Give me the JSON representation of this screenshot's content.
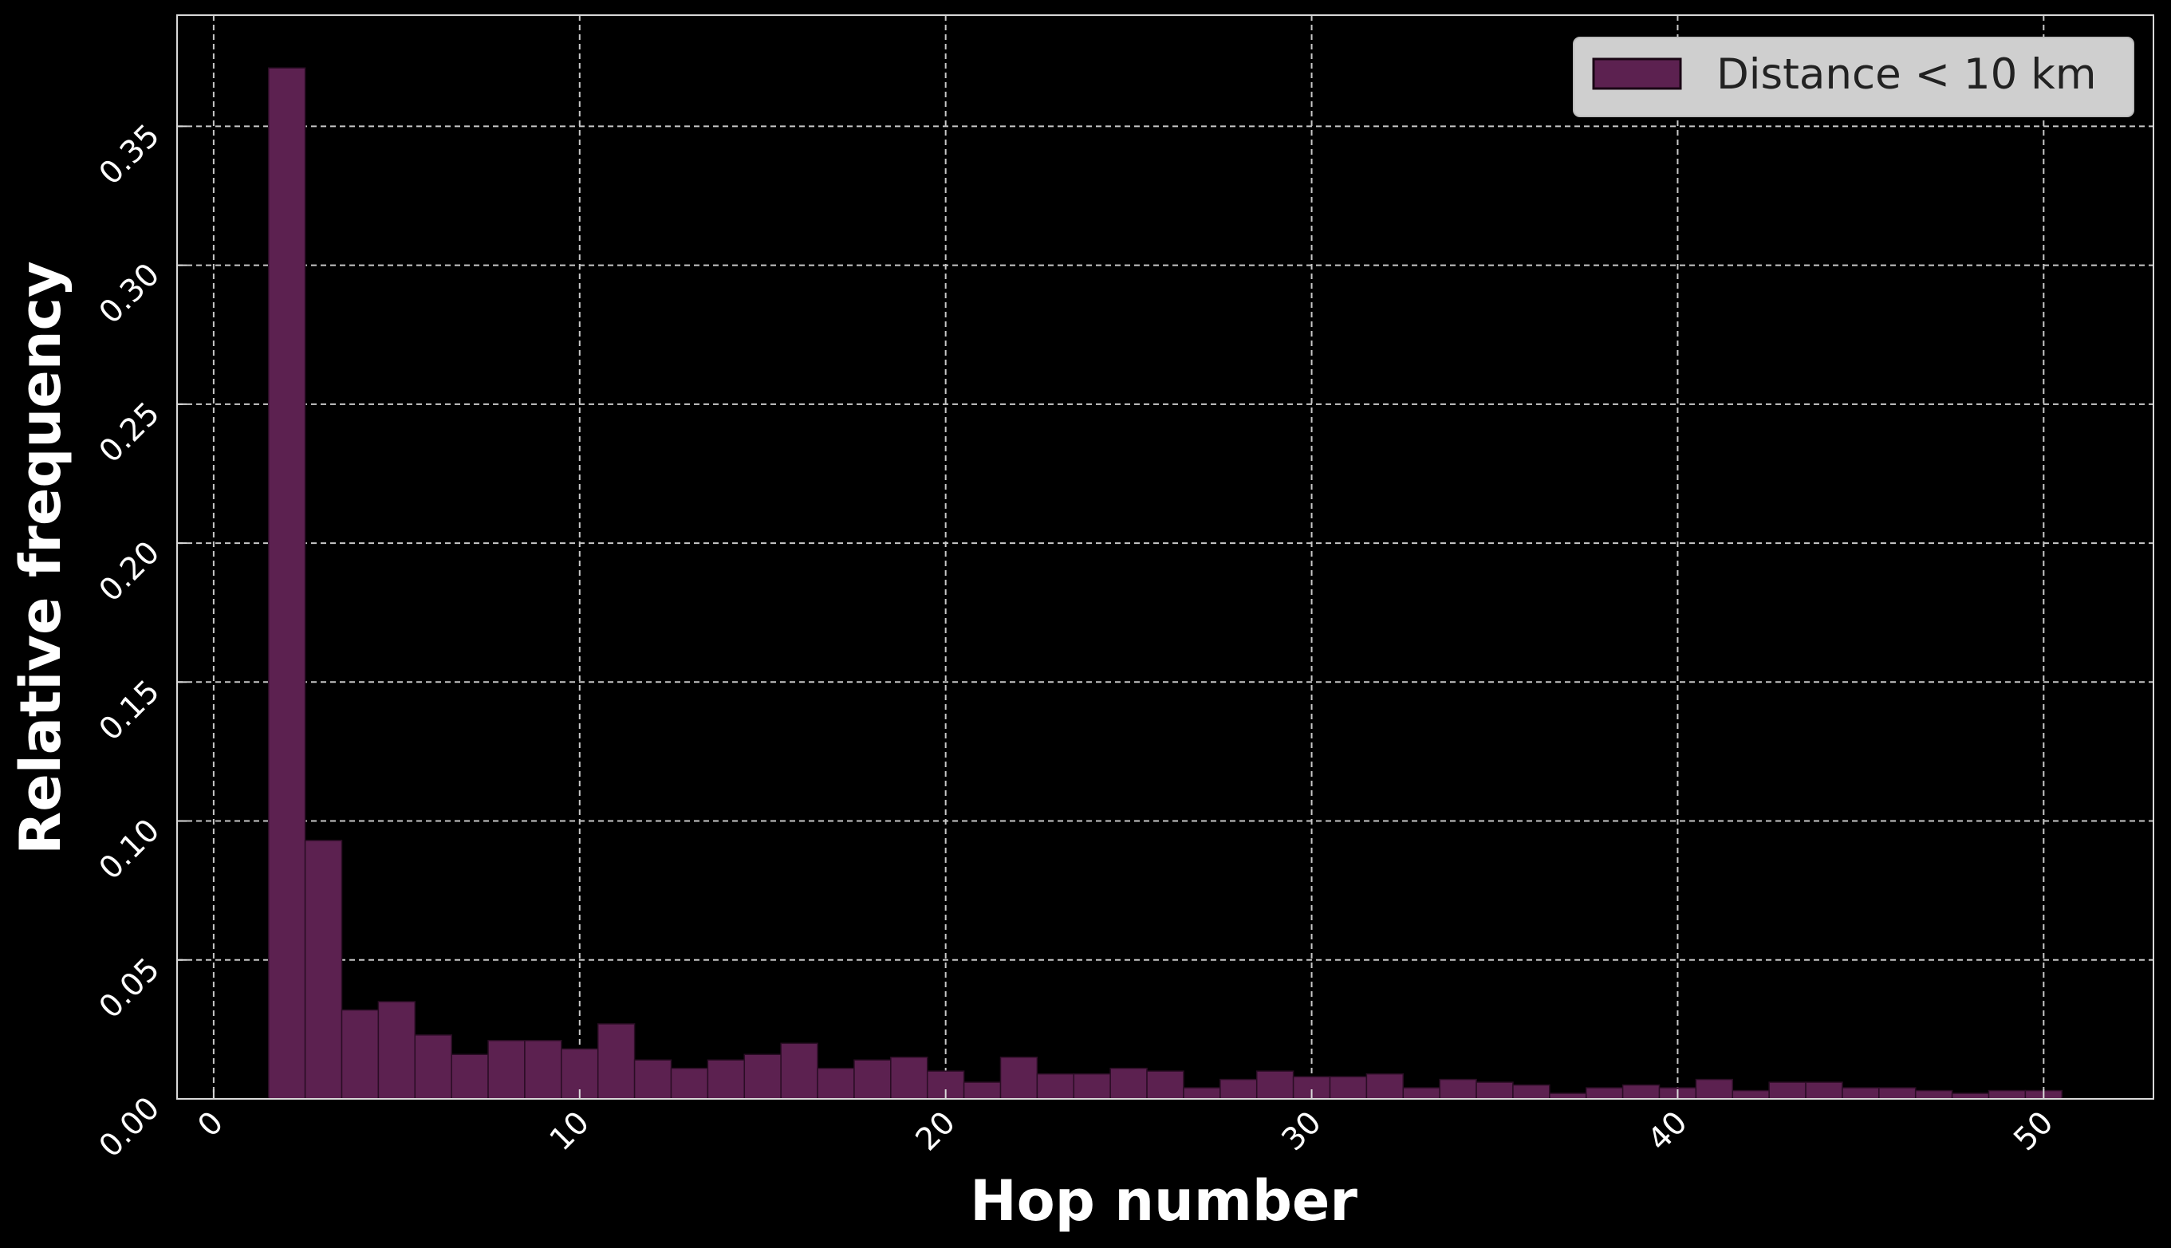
{
  "chart_data": {
    "type": "bar",
    "xlabel": "Hop number",
    "ylabel": "Relative frequency",
    "xlim": [
      -1,
      53
    ],
    "ylim": [
      0,
      0.39
    ],
    "xticks": [
      0,
      10,
      20,
      30,
      40,
      50
    ],
    "yticks": [
      0.0,
      0.05,
      0.1,
      0.15,
      0.2,
      0.25,
      0.3,
      0.35
    ],
    "x_tick_labels": [
      "0",
      "10",
      "20",
      "30",
      "40",
      "50"
    ],
    "y_tick_labels": [
      "0.00",
      "0.05",
      "0.10",
      "0.15",
      "0.20",
      "0.25",
      "0.30",
      "0.35"
    ],
    "grid": true,
    "grid_style": "dashed",
    "legend_position": "top-right",
    "bar_color": "#5c2150",
    "bar_edge_color": "#2a0d24",
    "background_color": "#000000",
    "series": [
      {
        "name": "Distance < 10 km",
        "bin_width": 1,
        "bin_starts": [
          1.5,
          2.5,
          3.5,
          4.5,
          5.5,
          6.5,
          7.5,
          8.5,
          9.5,
          10.5,
          11.5,
          12.5,
          13.5,
          14.5,
          15.5,
          16.5,
          17.5,
          18.5,
          19.5,
          20.5,
          21.5,
          22.5,
          23.5,
          24.5,
          25.5,
          26.5,
          27.5,
          28.5,
          29.5,
          30.5,
          31.5,
          32.5,
          33.5,
          34.5,
          35.5,
          36.5,
          37.5,
          38.5,
          39.5,
          40.5,
          41.5,
          42.5,
          43.5,
          44.5,
          45.5,
          46.5,
          47.5,
          48.5,
          49.5
        ],
        "values": [
          0.371,
          0.093,
          0.032,
          0.035,
          0.023,
          0.016,
          0.021,
          0.021,
          0.018,
          0.027,
          0.014,
          0.011,
          0.014,
          0.016,
          0.02,
          0.011,
          0.014,
          0.015,
          0.01,
          0.006,
          0.015,
          0.009,
          0.009,
          0.011,
          0.01,
          0.004,
          0.007,
          0.01,
          0.008,
          0.008,
          0.009,
          0.004,
          0.007,
          0.006,
          0.005,
          0.002,
          0.004,
          0.005,
          0.004,
          0.007,
          0.003,
          0.006,
          0.006,
          0.004,
          0.004,
          0.003,
          0.002,
          0.003,
          0.003
        ]
      }
    ]
  }
}
